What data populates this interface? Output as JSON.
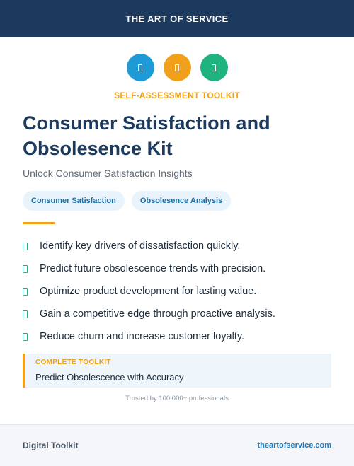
{
  "header": {
    "brand": "THE ART OF SERVICE"
  },
  "icons": [
    {
      "name": "document-icon",
      "color": "#1e9ad6"
    },
    {
      "name": "document-icon",
      "color": "#f0a01a"
    },
    {
      "name": "document-icon",
      "color": "#1fb37f"
    }
  ],
  "kicker": "SELF-ASSESSMENT TOOLKIT",
  "title": "Consumer Satisfaction and Obsolesence Kit",
  "subtitle": "Unlock Consumer Satisfaction Insights",
  "tags": [
    "Consumer Satisfaction",
    "Obsolesence Analysis"
  ],
  "benefits": [
    "Identify key drivers of dissatisfaction quickly.",
    "Predict future obsolescence trends with precision.",
    "Optimize product development for lasting value.",
    "Gain a competitive edge through proactive analysis.",
    "Reduce churn and increase customer loyalty."
  ],
  "callout": {
    "label": "COMPLETE TOOLKIT",
    "text": "Predict Obsolescence with Accuracy"
  },
  "trusted": "Trusted by 100,000+ professionals",
  "footer": {
    "left": "Digital Toolkit",
    "right": "theartofservice.com"
  },
  "colors": {
    "navy": "#1c3a5e",
    "accent_orange": "#f0a01a",
    "accent_blue": "#1e9ad6",
    "accent_green": "#1fb37f"
  }
}
